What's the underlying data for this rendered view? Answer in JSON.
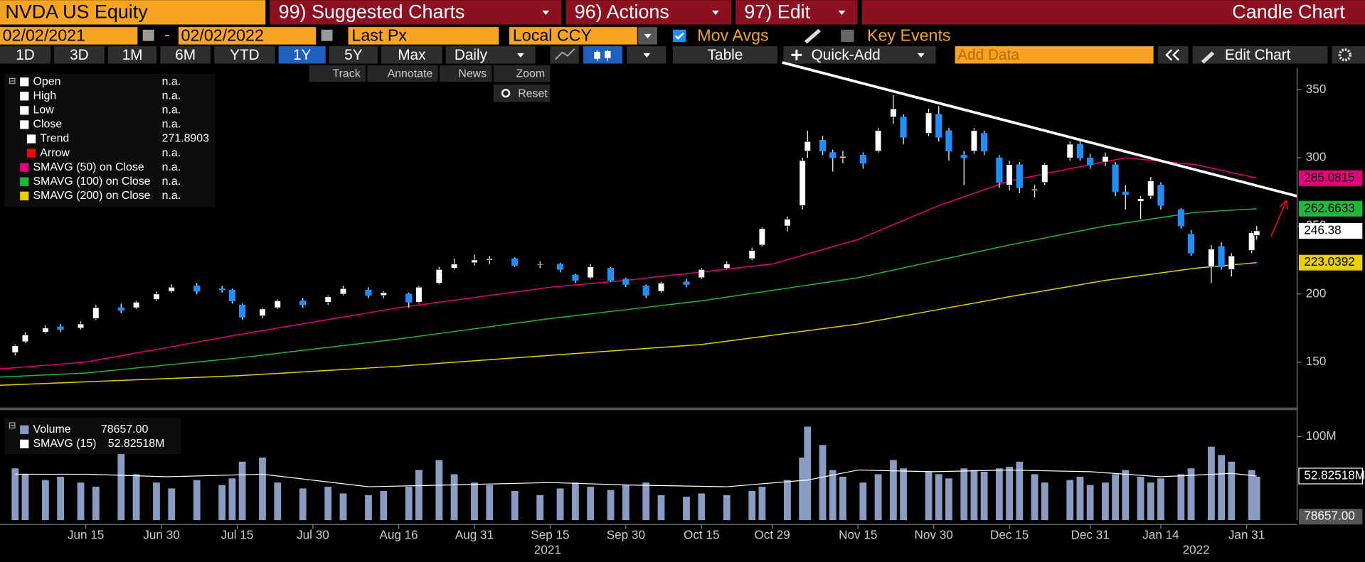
{
  "header": {
    "ticker": "NVDA US Equity",
    "menus": [
      "99) Suggested Charts",
      "96) Actions",
      "97) Edit"
    ],
    "title": "Candle Chart"
  },
  "controls": {
    "start_date": "02/02/2021",
    "dash": "-",
    "end_date": "02/02/2022",
    "field": "Last Px",
    "currency": "Local CCY",
    "mov_avgs": "Mov Avgs",
    "key_events": "Key Events"
  },
  "toolbar": {
    "periods": [
      "1D",
      "3D",
      "1M",
      "6M",
      "YTD",
      "1Y",
      "5Y",
      "Max"
    ],
    "active": "1Y",
    "frequency": "Daily",
    "table": "Table",
    "quick_add": "Quick-Add",
    "add_data": "Add Data",
    "edit_chart": "Edit Chart"
  },
  "tools": [
    "Track",
    "Annotate",
    "News",
    "Zoom"
  ],
  "reset": "Reset",
  "legend": [
    {
      "label": "Open",
      "value": "n.a.",
      "color": "#ffffff"
    },
    {
      "label": "High",
      "value": "n.a.",
      "color": "#ffffff"
    },
    {
      "label": "Low",
      "value": "n.a.",
      "color": "#ffffff"
    },
    {
      "label": "Close",
      "value": "n.a.",
      "color": "#ffffff"
    },
    {
      "label": "Trend",
      "color": "#ffffff"
    },
    {
      "label": "Arrow",
      "value": "n.a.",
      "color": "#ff0000"
    },
    {
      "label": "SMAVG (50)  on Close",
      "value": "n.a.",
      "color": "#e6007e"
    },
    {
      "label": "SMAVG (100)  on Close",
      "value": "n.a.",
      "color": "#1fb83a"
    },
    {
      "label": "SMAVG (200)  on Close",
      "value": "n.a.",
      "color": "#e8d000"
    }
  ],
  "volume_legend": [
    {
      "label": "Volume",
      "value": "78657.00",
      "color": "#8a9cc4"
    },
    {
      "label": "SMAVG (15)",
      "color": "#ffffff"
    }
  ],
  "chart_data": {
    "type": "candlestick",
    "x": [
      "2021-06-01",
      "2021-06-03",
      "2021-06-07",
      "2021-06-10",
      "2021-06-14",
      "2021-06-17",
      "2021-06-22",
      "2021-06-25",
      "2021-06-29",
      "2021-07-02",
      "2021-07-07",
      "2021-07-12",
      "2021-07-14",
      "2021-07-16",
      "2021-07-20",
      "2021-07-23",
      "2021-07-28",
      "2021-08-02",
      "2021-08-05",
      "2021-08-10",
      "2021-08-13",
      "2021-08-18",
      "2021-08-20",
      "2021-08-24",
      "2021-08-27",
      "2021-08-31",
      "2021-09-03",
      "2021-09-08",
      "2021-09-13",
      "2021-09-17",
      "2021-09-20",
      "2021-09-23",
      "2021-09-27",
      "2021-09-30",
      "2021-10-04",
      "2021-10-07",
      "2021-10-12",
      "2021-10-15",
      "2021-10-20",
      "2021-10-25",
      "2021-10-27",
      "2021-11-01",
      "2021-11-04",
      "2021-11-05",
      "2021-11-08",
      "2021-11-10",
      "2021-11-12",
      "2021-11-16",
      "2021-11-19",
      "2021-11-22",
      "2021-11-24",
      "2021-11-29",
      "2021-12-01",
      "2021-12-03",
      "2021-12-06",
      "2021-12-08",
      "2021-12-10",
      "2021-12-13",
      "2021-12-15",
      "2021-12-17",
      "2021-12-20",
      "2021-12-22",
      "2021-12-27",
      "2021-12-29",
      "2021-12-31",
      "2022-01-03",
      "2022-01-05",
      "2022-01-07",
      "2022-01-10",
      "2022-01-12",
      "2022-01-14",
      "2022-01-18",
      "2022-01-20",
      "2022-01-24",
      "2022-01-26",
      "2022-01-28",
      "2022-02-01",
      "2022-02-02"
    ],
    "open": [
      157,
      165,
      172,
      176,
      175,
      182,
      190,
      190,
      196,
      202,
      206,
      204,
      203,
      192,
      184,
      190,
      195,
      194,
      200,
      203,
      199,
      200,
      194,
      208,
      219,
      223,
      225,
      226,
      222,
      222,
      214,
      212,
      219,
      211,
      206,
      202,
      209,
      212,
      219,
      226,
      236,
      250,
      265,
      305,
      313,
      304,
      300,
      302,
      305,
      330,
      330,
      318,
      332,
      320,
      302,
      305,
      318,
      300,
      280,
      295,
      276,
      282,
      300,
      310,
      300,
      297,
      295,
      275,
      268,
      272,
      280,
      262,
      244,
      220,
      235,
      218,
      232,
      243
    ],
    "high": [
      163,
      172,
      177,
      178,
      180,
      192,
      193,
      195,
      202,
      207,
      208,
      206,
      204,
      193,
      190,
      196,
      197,
      199,
      206,
      205,
      202,
      201,
      206,
      220,
      226,
      229,
      228,
      227,
      224,
      223,
      215,
      222,
      220,
      212,
      207,
      209,
      211,
      219,
      224,
      234,
      249,
      257,
      300,
      320,
      316,
      306,
      305,
      304,
      322,
      346,
      332,
      336,
      338,
      322,
      305,
      322,
      320,
      302,
      298,
      297,
      280,
      296,
      312,
      313,
      303,
      304,
      297,
      280,
      272,
      286,
      282,
      263,
      247,
      236,
      238,
      230,
      246,
      250
    ],
    "low": [
      155,
      164,
      171,
      172,
      174,
      181,
      186,
      189,
      195,
      201,
      200,
      201,
      193,
      181,
      182,
      189,
      190,
      192,
      199,
      197,
      197,
      190,
      193,
      207,
      218,
      221,
      222,
      220,
      219,
      216,
      208,
      211,
      209,
      205,
      197,
      201,
      205,
      211,
      218,
      225,
      235,
      246,
      262,
      300,
      302,
      290,
      296,
      292,
      304,
      325,
      310,
      316,
      312,
      298,
      280,
      303,
      302,
      278,
      276,
      274,
      271,
      280,
      298,
      298,
      292,
      294,
      272,
      262,
      255,
      270,
      262,
      248,
      228,
      208,
      218,
      213,
      230,
      240
    ],
    "close": [
      162,
      170,
      175,
      174,
      178,
      190,
      188,
      194,
      200,
      205,
      202,
      203,
      195,
      183,
      189,
      195,
      192,
      198,
      204,
      199,
      201,
      194,
      205,
      218,
      222,
      225,
      226,
      221,
      222,
      218,
      210,
      220,
      210,
      207,
      199,
      208,
      207,
      218,
      222,
      232,
      248,
      255,
      298,
      312,
      305,
      300,
      301,
      296,
      320,
      336,
      315,
      333,
      315,
      305,
      300,
      320,
      305,
      282,
      295,
      278,
      277,
      295,
      310,
      300,
      295,
      301,
      275,
      273,
      270,
      283,
      265,
      250,
      230,
      233,
      220,
      228,
      245,
      246.38
    ],
    "up_color": "#ffffff",
    "down_color": "#1e8fff",
    "xlim": [
      "2021-05-29",
      "2022-02-10"
    ],
    "xticks": [
      {
        "value": "2021-06-15",
        "label": "Jun 15"
      },
      {
        "value": "2021-06-30",
        "label": "Jun 30"
      },
      {
        "value": "2021-07-15",
        "label": "Jul 15"
      },
      {
        "value": "2021-07-30",
        "label": "Jul 30"
      },
      {
        "value": "2021-08-16",
        "label": "Aug 16"
      },
      {
        "value": "2021-08-31",
        "label": "Aug 31"
      },
      {
        "value": "2021-09-15",
        "label": "Sep 15"
      },
      {
        "value": "2021-09-30",
        "label": "Sep 30"
      },
      {
        "value": "2021-10-15",
        "label": "Oct 15"
      },
      {
        "value": "2021-10-29",
        "label": "Oct 29"
      },
      {
        "value": "2021-11-15",
        "label": "Nov 15"
      },
      {
        "value": "2021-11-30",
        "label": "Nov 30"
      },
      {
        "value": "2021-12-15",
        "label": "Dec 15"
      },
      {
        "value": "2021-12-31",
        "label": "Dec 31"
      },
      {
        "value": "2022-01-14",
        "label": "Jan 14"
      },
      {
        "value": "2022-01-31",
        "label": "Jan 31"
      }
    ],
    "years": [
      "2021",
      "2022"
    ],
    "ylim": [
      117,
      366
    ],
    "yticks": [
      150,
      200,
      250,
      300,
      350
    ],
    "series": [
      {
        "name": "SMAVG (50)",
        "color": "#e6007e",
        "x": [
          "2021-05-29",
          "2021-06-15",
          "2021-07-15",
          "2021-08-16",
          "2021-09-15",
          "2021-09-30",
          "2021-10-29",
          "2021-11-15",
          "2021-12-01",
          "2021-12-15",
          "2021-12-31",
          "2022-01-07",
          "2022-01-21",
          "2022-02-02"
        ],
        "values": [
          145,
          150,
          170,
          190,
          205,
          210,
          222,
          240,
          265,
          283,
          295,
          300,
          295,
          285.0815
        ]
      },
      {
        "name": "SMAVG (100)",
        "color": "#1fb83a",
        "x": [
          "2021-05-29",
          "2021-06-15",
          "2021-07-15",
          "2021-08-16",
          "2021-09-15",
          "2021-10-15",
          "2021-11-15",
          "2021-12-15",
          "2022-01-03",
          "2022-01-21",
          "2022-02-02"
        ],
        "values": [
          139,
          142,
          153,
          167,
          182,
          195,
          212,
          236,
          250,
          260,
          262.6633
        ]
      },
      {
        "name": "SMAVG (200)",
        "color": "#e8d000",
        "x": [
          "2021-05-29",
          "2021-07-15",
          "2021-08-16",
          "2021-09-15",
          "2021-10-15",
          "2021-11-15",
          "2021-12-15",
          "2022-01-03",
          "2022-01-21",
          "2022-02-02"
        ],
        "values": [
          133,
          140,
          147,
          155,
          163,
          178,
          198,
          210,
          219,
          223.0392
        ]
      }
    ],
    "trend": {
      "name": "Trend",
      "color": "#ffffff",
      "x": [
        "2021-10-31",
        "2022-02-10"
      ],
      "values": [
        370,
        271.8903
      ]
    },
    "volume": {
      "values": [
        62,
        55,
        48,
        52,
        45,
        40,
        80,
        55,
        45,
        38,
        48,
        42,
        50,
        70,
        75,
        45,
        38,
        40,
        32,
        30,
        35,
        40,
        60,
        72,
        55,
        45,
        42,
        35,
        30,
        38,
        45,
        40,
        36,
        42,
        45,
        30,
        28,
        32,
        30,
        35,
        40,
        48,
        75,
        112,
        90,
        60,
        52,
        45,
        55,
        72,
        62,
        58,
        55,
        50,
        62,
        60,
        58,
        62,
        64,
        70,
        55,
        45,
        48,
        52,
        42,
        45,
        55,
        60,
        52,
        45,
        50,
        55,
        62,
        88,
        78,
        70,
        60,
        52
      ],
      "color": "#8a9cc4",
      "ylim": [
        0,
        125
      ],
      "yticks": [
        {
          "value": 100,
          "label": "100M"
        }
      ],
      "sma": {
        "name": "SMAVG (15)",
        "color": "#ffffff",
        "x": [
          "2021-06-01",
          "2021-06-15",
          "2021-07-01",
          "2021-07-20",
          "2021-08-10",
          "2021-08-25",
          "2021-09-15",
          "2021-10-01",
          "2021-10-20",
          "2021-11-05",
          "2021-11-15",
          "2021-11-30",
          "2021-12-15",
          "2021-12-31",
          "2022-01-14",
          "2022-01-28",
          "2022-02-02"
        ],
        "values": [
          55,
          55,
          52,
          55,
          40,
          42,
          45,
          42,
          40,
          48,
          60,
          58,
          60,
          58,
          52,
          56,
          52.82518
        ],
        "tag_label": "52.82518M"
      }
    }
  }
}
